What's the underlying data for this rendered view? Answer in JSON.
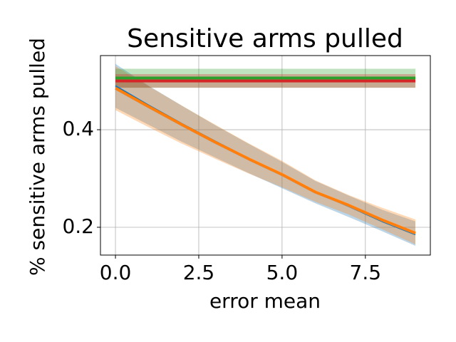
{
  "chart_data": {
    "type": "line",
    "title": "Sensitive arms pulled",
    "xlabel": "error mean",
    "ylabel": "% sensitive arms pulled",
    "x": [
      0,
      1,
      2,
      3,
      4,
      5,
      6,
      7,
      8,
      9
    ],
    "xlim": [
      -0.45,
      9.45
    ],
    "ylim": [
      0.143,
      0.552
    ],
    "xticks": [
      {
        "value": 0,
        "label": "0.0"
      },
      {
        "value": 2.5,
        "label": "2.5"
      },
      {
        "value": 5,
        "label": "5.0"
      },
      {
        "value": 7.5,
        "label": "7.5"
      }
    ],
    "yticks": [
      0.2,
      0.4
    ],
    "grid": true,
    "series": [
      {
        "color": "#1f77b4",
        "width": 2,
        "values": [
          0.49,
          0.45,
          0.412,
          0.376,
          0.341,
          0.307,
          0.272,
          0.243,
          0.212,
          0.185
        ],
        "lower": [
          0.445,
          0.41,
          0.375,
          0.343,
          0.311,
          0.28,
          0.249,
          0.221,
          0.192,
          0.162
        ],
        "upper": [
          0.535,
          0.49,
          0.449,
          0.409,
          0.371,
          0.334,
          0.295,
          0.265,
          0.236,
          0.212
        ]
      },
      {
        "color": "#ff7f0e",
        "width": 4,
        "values": [
          0.485,
          0.447,
          0.41,
          0.374,
          0.34,
          0.308,
          0.272,
          0.245,
          0.215,
          0.188
        ],
        "lower": [
          0.44,
          0.405,
          0.371,
          0.34,
          0.31,
          0.282,
          0.252,
          0.226,
          0.196,
          0.165
        ],
        "upper": [
          0.53,
          0.489,
          0.449,
          0.41,
          0.372,
          0.336,
          0.296,
          0.266,
          0.24,
          0.216
        ]
      },
      {
        "color": "#2ca02c",
        "width": 4,
        "values": [
          0.506,
          0.506,
          0.506,
          0.506,
          0.506,
          0.506,
          0.506,
          0.506,
          0.506,
          0.506
        ],
        "lower": [
          0.486,
          0.486,
          0.486,
          0.486,
          0.486,
          0.486,
          0.486,
          0.486,
          0.486,
          0.486
        ],
        "upper": [
          0.525,
          0.525,
          0.525,
          0.525,
          0.525,
          0.525,
          0.525,
          0.525,
          0.525,
          0.525
        ]
      },
      {
        "color": "#d62728",
        "width": 4,
        "values": [
          0.5,
          0.5,
          0.5,
          0.5,
          0.5,
          0.5,
          0.5,
          0.5,
          0.5,
          0.5
        ],
        "lower": [
          0.486,
          0.486,
          0.486,
          0.486,
          0.486,
          0.486,
          0.486,
          0.486,
          0.486,
          0.486
        ],
        "upper": [
          0.514,
          0.514,
          0.514,
          0.514,
          0.514,
          0.514,
          0.514,
          0.514,
          0.514,
          0.514
        ]
      }
    ]
  }
}
